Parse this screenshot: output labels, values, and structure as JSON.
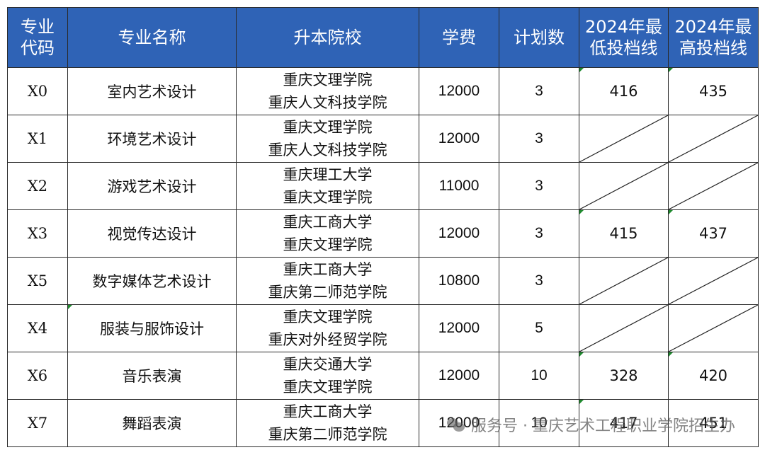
{
  "headers": {
    "code": "专业代码",
    "code_l1": "专业",
    "code_l2": "代码",
    "major": "专业名称",
    "school": "升本院校",
    "fee": "学费",
    "plan": "计划数",
    "min_l1": "2024年最",
    "min_l2": "低投档线",
    "max_l1": "2024年最",
    "max_l2": "高投档线"
  },
  "rows": [
    {
      "code": "X0",
      "major": "室内艺术设计",
      "school1": "重庆文理学院",
      "school2": "重庆人文科技学院",
      "fee": "12000",
      "plan": "3",
      "min": "416",
      "max": "435"
    },
    {
      "code": "X1",
      "major": "环境艺术设计",
      "school1": "重庆文理学院",
      "school2": "重庆人文科技学院",
      "fee": "12000",
      "plan": "3",
      "min": "",
      "max": ""
    },
    {
      "code": "X2",
      "major": "游戏艺术设计",
      "school1": "重庆理工大学",
      "school2": "重庆文理学院",
      "fee": "11000",
      "plan": "3",
      "min": "",
      "max": ""
    },
    {
      "code": "X3",
      "major": "视觉传达设计",
      "school1": "重庆工商大学",
      "school2": "重庆文理学院",
      "fee": "12000",
      "plan": "3",
      "min": "415",
      "max": "437"
    },
    {
      "code": "X5",
      "major": "数字媒体艺术设计",
      "school1": "重庆工商大学",
      "school2": "重庆第二师范学院",
      "fee": "10800",
      "plan": "3",
      "min": "",
      "max": ""
    },
    {
      "code": "X4",
      "major": "服装与服饰设计",
      "school1": "重庆文理学院",
      "school2": "重庆对外经贸学院",
      "fee": "12000",
      "plan": "5",
      "min": "",
      "max": ""
    },
    {
      "code": "X6",
      "major": "音乐表演",
      "school1": "重庆交通大学",
      "school2": "重庆文理学院",
      "fee": "12000",
      "plan": "10",
      "min": "328",
      "max": "420"
    },
    {
      "code": "X7",
      "major": "舞蹈表演",
      "school1": "重庆工商大学",
      "school2": "重庆第二师范学院",
      "fee": "12000",
      "plan": "10",
      "min": "417",
      "max": "451"
    }
  ],
  "watermark": {
    "text": "服务号 · 重庆艺术工程职业学院招生办",
    "icon": "wechat-icon"
  }
}
